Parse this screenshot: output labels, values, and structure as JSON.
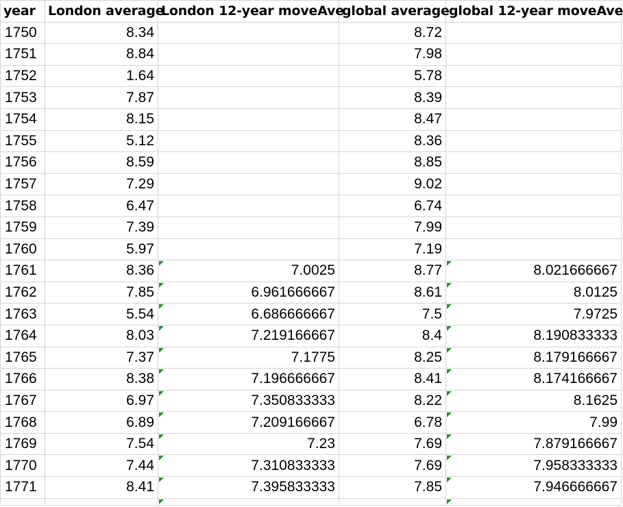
{
  "columns": [
    "year",
    "London average",
    "London 12-year moveAve",
    "global average",
    "global 12-year moveAve"
  ],
  "rows": [
    {
      "year": "1750",
      "london_avg": "8.34",
      "london_move": "",
      "global_avg": "8.72",
      "global_move": ""
    },
    {
      "year": "1751",
      "london_avg": "8.84",
      "london_move": "",
      "global_avg": "7.98",
      "global_move": ""
    },
    {
      "year": "1752",
      "london_avg": "1.64",
      "london_move": "",
      "global_avg": "5.78",
      "global_move": ""
    },
    {
      "year": "1753",
      "london_avg": "7.87",
      "london_move": "",
      "global_avg": "8.39",
      "global_move": ""
    },
    {
      "year": "1754",
      "london_avg": "8.15",
      "london_move": "",
      "global_avg": "8.47",
      "global_move": ""
    },
    {
      "year": "1755",
      "london_avg": "5.12",
      "london_move": "",
      "global_avg": "8.36",
      "global_move": ""
    },
    {
      "year": "1756",
      "london_avg": "8.59",
      "london_move": "",
      "global_avg": "8.85",
      "global_move": ""
    },
    {
      "year": "1757",
      "london_avg": "7.29",
      "london_move": "",
      "global_avg": "9.02",
      "global_move": ""
    },
    {
      "year": "1758",
      "london_avg": "6.47",
      "london_move": "",
      "global_avg": "6.74",
      "global_move": ""
    },
    {
      "year": "1759",
      "london_avg": "7.39",
      "london_move": "",
      "global_avg": "7.99",
      "global_move": ""
    },
    {
      "year": "1760",
      "london_avg": "5.97",
      "london_move": "",
      "global_avg": "7.19",
      "global_move": ""
    },
    {
      "year": "1761",
      "london_avg": "8.36",
      "london_move": "7.0025",
      "global_avg": "8.77",
      "global_move": "8.021666667"
    },
    {
      "year": "1762",
      "london_avg": "7.85",
      "london_move": "6.961666667",
      "global_avg": "8.61",
      "global_move": "8.0125"
    },
    {
      "year": "1763",
      "london_avg": "5.54",
      "london_move": "6.686666667",
      "global_avg": "7.5",
      "global_move": "7.9725"
    },
    {
      "year": "1764",
      "london_avg": "8.03",
      "london_move": "7.219166667",
      "global_avg": "8.4",
      "global_move": "8.190833333"
    },
    {
      "year": "1765",
      "london_avg": "7.37",
      "london_move": "7.1775",
      "global_avg": "8.25",
      "global_move": "8.179166667"
    },
    {
      "year": "1766",
      "london_avg": "8.38",
      "london_move": "7.196666667",
      "global_avg": "8.41",
      "global_move": "8.174166667"
    },
    {
      "year": "1767",
      "london_avg": "6.97",
      "london_move": "7.350833333",
      "global_avg": "8.22",
      "global_move": "8.1625"
    },
    {
      "year": "1768",
      "london_avg": "6.89",
      "london_move": "7.209166667",
      "global_avg": "6.78",
      "global_move": "7.99"
    },
    {
      "year": "1769",
      "london_avg": "7.54",
      "london_move": "7.23",
      "global_avg": "7.69",
      "global_move": "7.879166667"
    },
    {
      "year": "1770",
      "london_avg": "7.44",
      "london_move": "7.310833333",
      "global_avg": "7.69",
      "global_move": "7.958333333"
    },
    {
      "year": "1771",
      "london_avg": "8.41",
      "london_move": "7.395833333",
      "global_avg": "7.85",
      "global_move": "7.946666667"
    }
  ],
  "colors": {
    "gridline": "#d4d4d4",
    "formula_flag": "#1e8f2f"
  }
}
